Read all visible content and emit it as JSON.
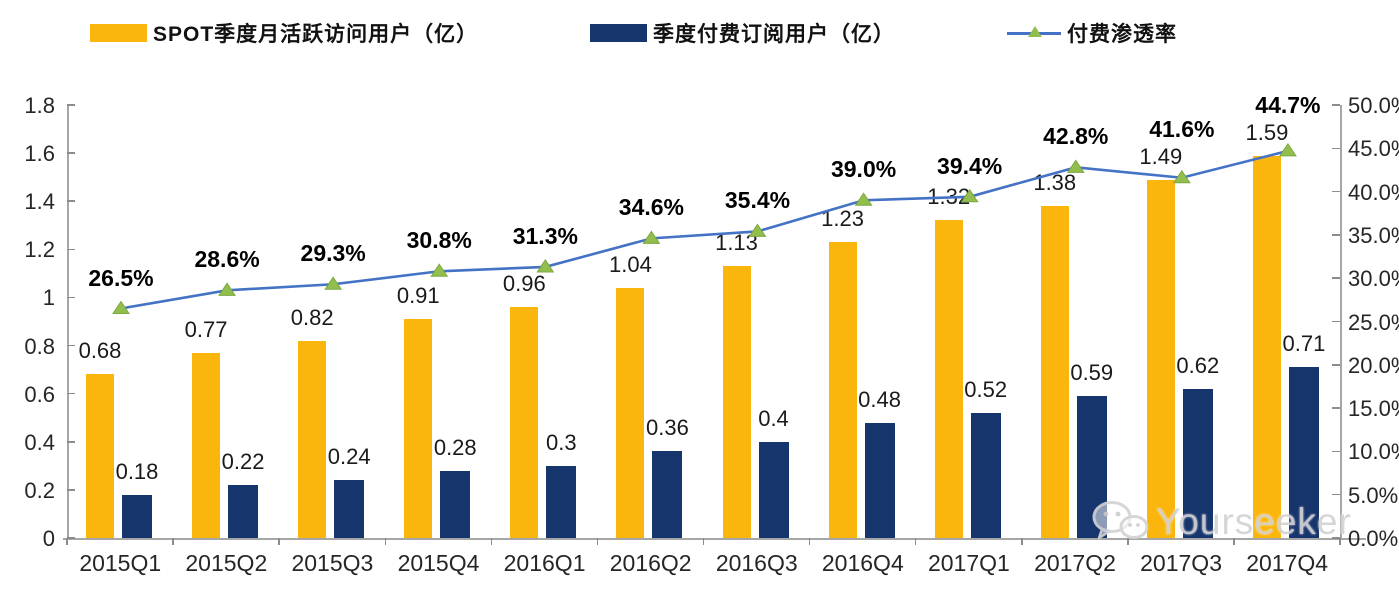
{
  "legend": [
    {
      "label": "SPOT季度月活跃访问用户（亿）",
      "color": "#FBB60E",
      "type": "bar-swatch"
    },
    {
      "label": "季度付费订阅用户（亿）",
      "color": "#17356D",
      "type": "bar-swatch"
    },
    {
      "label": "付费渗透率",
      "color": "#4472C4",
      "marker_color": "#92BE4E",
      "type": "line-swatch"
    }
  ],
  "watermark": {
    "label": "Yourseeker",
    "icon": "wechat-icon"
  },
  "colors": {
    "mau_bar": "#FBB60E",
    "subs_bar": "#17356D",
    "line": "#4472C4",
    "marker": "#92BE4E",
    "axis": "#a6a6a6"
  },
  "chart_data": {
    "type": "bar",
    "subtype": "grouped-bars-with-line",
    "categories": [
      "2015Q1",
      "2015Q2",
      "2015Q3",
      "2015Q4",
      "2016Q1",
      "2016Q2",
      "2016Q3",
      "2016Q4",
      "2017Q1",
      "2017Q2",
      "2017Q3",
      "2017Q4"
    ],
    "series": [
      {
        "name": "SPOT季度月活跃访问用户（亿）",
        "type": "bar",
        "axis": "left",
        "color": "#FBB60E",
        "values": [
          0.68,
          0.77,
          0.82,
          0.91,
          0.96,
          1.04,
          1.13,
          1.23,
          1.32,
          1.38,
          1.49,
          1.59
        ],
        "labels": [
          "0.68",
          "0.77",
          "0.82",
          "0.91",
          "0.96",
          "1.04",
          "1.13",
          "1.23",
          "1.32",
          "1.38",
          "1.49",
          "1.59"
        ]
      },
      {
        "name": "季度付费订阅用户（亿）",
        "type": "bar",
        "axis": "left",
        "color": "#17356D",
        "values": [
          0.18,
          0.22,
          0.24,
          0.28,
          0.3,
          0.36,
          0.4,
          0.48,
          0.52,
          0.59,
          0.62,
          0.71
        ],
        "labels": [
          "0.18",
          "0.22",
          "0.24",
          "0.28",
          "0.3",
          "0.36",
          "0.4",
          "0.48",
          "0.52",
          "0.59",
          "0.62",
          "0.71"
        ]
      },
      {
        "name": "付费渗透率",
        "type": "line",
        "axis": "right",
        "color": "#4472C4",
        "marker": "triangle",
        "marker_color": "#92BE4E",
        "values": [
          26.5,
          28.6,
          29.3,
          30.8,
          31.3,
          34.6,
          35.4,
          39.0,
          39.4,
          42.8,
          41.6,
          44.7
        ],
        "labels": [
          "26.5%",
          "28.6%",
          "29.3%",
          "30.8%",
          "31.3%",
          "34.6%",
          "35.4%",
          "39.0%",
          "39.4%",
          "42.8%",
          "41.6%",
          "44.7%"
        ]
      }
    ],
    "left_axis": {
      "min": 0,
      "max": 1.8,
      "step": 0.2,
      "ticks": [
        "0",
        "0.2",
        "0.4",
        "0.6",
        "0.8",
        "1",
        "1.2",
        "1.4",
        "1.6",
        "1.8"
      ]
    },
    "right_axis": {
      "min": 0,
      "max": 50,
      "step": 5,
      "ticks": [
        "0.0%",
        "5.0%",
        "10.0%",
        "15.0%",
        "20.0%",
        "25.0%",
        "30.0%",
        "35.0%",
        "40.0%",
        "45.0%",
        "50.0%"
      ]
    },
    "grid": false,
    "legend_position": "top",
    "title": ""
  }
}
